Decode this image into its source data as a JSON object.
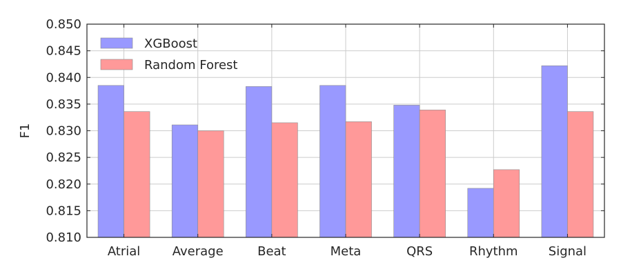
{
  "chart_data": {
    "type": "bar",
    "title": "",
    "xlabel": "",
    "ylabel": "F1",
    "categories": [
      "Atrial",
      "Average",
      "Beat",
      "Meta",
      "QRS",
      "Rhythm",
      "Signal"
    ],
    "series": [
      {
        "name": "XGBoost",
        "values": [
          0.8385,
          0.8311,
          0.8383,
          0.8385,
          0.8348,
          0.8192,
          0.8422
        ],
        "color": "#9999ff"
      },
      {
        "name": "Random Forest",
        "values": [
          0.8336,
          0.83,
          0.8315,
          0.8317,
          0.8339,
          0.8227,
          0.8336
        ],
        "color": "#ff9999"
      }
    ],
    "ylim": [
      0.81,
      0.85
    ],
    "yticks": [
      "0.810",
      "0.815",
      "0.820",
      "0.825",
      "0.830",
      "0.835",
      "0.840",
      "0.845",
      "0.850"
    ],
    "grid": true,
    "legend_position": "top-left"
  }
}
